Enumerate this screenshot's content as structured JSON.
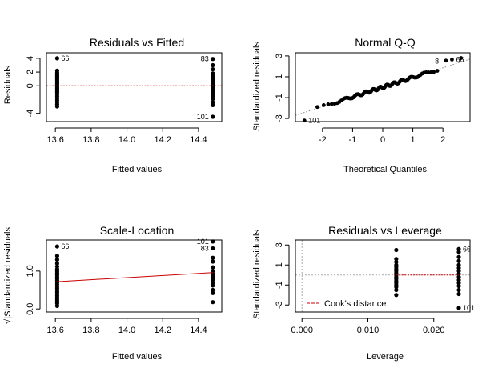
{
  "colors": {
    "points": "#000000",
    "fit_line": "#cc0000",
    "ref_line": "#888888",
    "grid": "#aaaaaa"
  },
  "chart_data": [
    {
      "type": "scatter",
      "title": "Residuals vs Fitted",
      "xlabel": "Fitted values",
      "ylabel": "Residuals",
      "xlim": [
        13.55,
        14.53
      ],
      "ylim": [
        -5.2,
        4.8
      ],
      "xticks": [
        "13.6",
        "13.8",
        "14.0",
        "14.2",
        "14.4"
      ],
      "xtick_values": [
        13.6,
        13.8,
        14.0,
        14.2,
        14.4
      ],
      "yticks": [
        "-4",
        "0",
        "2",
        "4"
      ],
      "ytick_values": [
        -4,
        0,
        2,
        4
      ],
      "groups": [
        {
          "x": 13.61,
          "y": [
            4.0,
            2.2,
            1.9,
            1.6,
            1.4,
            1.2,
            1.0,
            0.8,
            0.6,
            0.5,
            0.3,
            0.1,
            0.0,
            -0.2,
            -0.4,
            -0.6,
            -0.8,
            -1.0,
            -1.2,
            -1.5,
            -1.8,
            -2.1,
            -2.4,
            -2.7,
            -3.0
          ]
        },
        {
          "x": 14.48,
          "y": [
            3.9,
            3.0,
            2.4,
            1.8,
            1.4,
            1.0,
            0.7,
            0.4,
            0.1,
            -0.2,
            -0.5,
            -0.8,
            -1.1,
            -1.5,
            -1.9,
            -2.4,
            -2.8,
            -4.5
          ]
        }
      ],
      "fit_line": {
        "points": [
          [
            13.55,
            0
          ],
          [
            14.53,
            0
          ]
        ],
        "style": "dashed"
      },
      "point_labels": [
        {
          "text": "66",
          "x": 13.61,
          "y": 4.0,
          "side": "right"
        },
        {
          "text": "83",
          "x": 14.48,
          "y": 3.9,
          "side": "left"
        },
        {
          "text": "101",
          "x": 14.48,
          "y": -4.5,
          "side": "left"
        }
      ]
    },
    {
      "type": "scatter",
      "title": "Normal Q-Q",
      "xlabel": "Theoretical Quantiles",
      "ylabel": "Standardized residuals",
      "xlim": [
        -2.9,
        2.9
      ],
      "ylim": [
        -3.3,
        3.3
      ],
      "xticks": [
        "-2",
        "-1",
        "0",
        "1",
        "2"
      ],
      "xtick_values": [
        -2,
        -1,
        0,
        1,
        2
      ],
      "yticks": [
        "-3",
        "-1",
        "1",
        "3"
      ],
      "ytick_values": [
        -3,
        -1,
        1,
        3
      ],
      "qq_n": 100,
      "qq_extremes": {
        "low": [
          -2.6,
          -3.2
        ],
        "high": [
          [
            2.1,
            2.55
          ],
          [
            2.3,
            2.65
          ],
          [
            2.6,
            2.8
          ]
        ]
      },
      "reference_line": {
        "points": [
          [
            -2.9,
            -2.7
          ],
          [
            2.9,
            2.7
          ]
        ],
        "style": "dotted"
      },
      "point_labels": [
        {
          "text": "101",
          "x": -2.6,
          "y": -3.2,
          "side": "right"
        },
        {
          "text": "8",
          "x": 2.0,
          "y": 2.5,
          "side": "left"
        },
        {
          "text": "66",
          "x": 2.3,
          "y": 2.65,
          "side": "right"
        }
      ]
    },
    {
      "type": "scatter",
      "title": "Scale-Location",
      "xlabel": "Fitted values",
      "ylabel": "√|Standardized residuals|",
      "xlim": [
        13.55,
        14.53
      ],
      "ylim": [
        -0.08,
        1.82
      ],
      "xticks": [
        "13.6",
        "13.8",
        "14.0",
        "14.2",
        "14.4"
      ],
      "xtick_values": [
        13.6,
        13.8,
        14.0,
        14.2,
        14.4
      ],
      "yticks": [
        "0.0",
        "1.0"
      ],
      "ytick_values": [
        0.0,
        1.0
      ],
      "groups": [
        {
          "x": 13.61,
          "y": [
            1.65,
            1.4,
            1.3,
            1.2,
            1.12,
            1.05,
            1.0,
            0.95,
            0.9,
            0.85,
            0.8,
            0.75,
            0.7,
            0.65,
            0.6,
            0.55,
            0.5,
            0.45,
            0.4,
            0.35,
            0.3,
            0.25,
            0.2,
            0.15,
            0.08
          ]
        },
        {
          "x": 14.48,
          "y": [
            1.78,
            1.6,
            1.35,
            1.25,
            1.1,
            1.0,
            0.92,
            0.85,
            0.78,
            0.7,
            0.62,
            0.5,
            0.42,
            0.18
          ]
        }
      ],
      "fit_line": {
        "points": [
          [
            13.61,
            0.72
          ],
          [
            14.48,
            0.96
          ]
        ],
        "style": "solid"
      },
      "point_labels": [
        {
          "text": "66",
          "x": 13.61,
          "y": 1.65,
          "side": "right"
        },
        {
          "text": "101",
          "x": 14.48,
          "y": 1.78,
          "side": "left"
        },
        {
          "text": "83",
          "x": 14.48,
          "y": 1.6,
          "side": "left"
        }
      ]
    },
    {
      "type": "scatter",
      "title": "Residuals vs Leverage",
      "xlabel": "Leverage",
      "ylabel": "Standardized residuals",
      "xlim": [
        -0.001,
        0.0255
      ],
      "ylim": [
        -3.7,
        3.5
      ],
      "xticks": [
        "0.000",
        "0.010",
        "0.020"
      ],
      "xtick_values": [
        0.0,
        0.01,
        0.02
      ],
      "yticks": [
        "-3",
        "-1",
        "1",
        "3"
      ],
      "ytick_values": [
        -3,
        -1,
        1,
        3
      ],
      "groups": [
        {
          "x": 0.0143,
          "y": [
            2.5,
            1.6,
            1.3,
            1.0,
            0.8,
            0.6,
            0.4,
            0.2,
            0.0,
            -0.2,
            -0.4,
            -0.6,
            -0.8,
            -1.0,
            -1.2,
            -1.5,
            -2.0
          ]
        },
        {
          "x": 0.0238,
          "y": [
            2.6,
            2.3,
            1.8,
            1.4,
            1.0,
            0.7,
            0.4,
            0.1,
            -0.2,
            -0.5,
            -0.8,
            -1.1,
            -1.5,
            -1.9,
            -3.3
          ]
        }
      ],
      "fit_line": {
        "points": [
          [
            0.0143,
            0
          ],
          [
            0.0238,
            0
          ]
        ],
        "style": "dashed"
      },
      "reference_lines": [
        {
          "orientation": "horizontal",
          "value": 0
        },
        {
          "orientation": "vertical",
          "value": 0
        }
      ],
      "legend": {
        "label": "Cook's distance",
        "placement": "bottom-left"
      },
      "point_labels": [
        {
          "text": "66",
          "x": 0.0238,
          "y": 2.6,
          "side": "right"
        },
        {
          "text": "101",
          "x": 0.0238,
          "y": -3.3,
          "side": "right"
        }
      ]
    }
  ]
}
